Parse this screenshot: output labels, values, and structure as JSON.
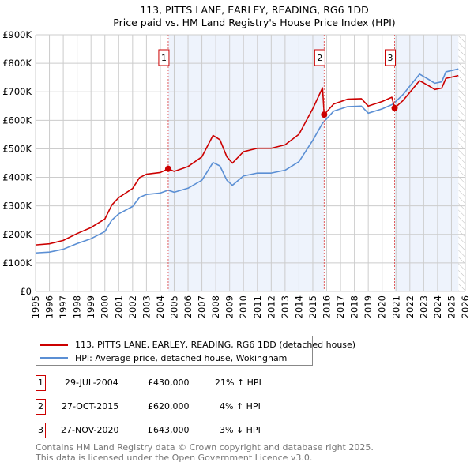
{
  "chart_data": {
    "type": "line",
    "title": "113, PITTS LANE, EARLEY, READING, RG6 1DD",
    "subtitle": "Price paid vs. HM Land Registry's House Price Index (HPI)",
    "xlim": [
      1995,
      2026
    ],
    "ylim": [
      0,
      900000
    ],
    "x_ticks": [
      "1995",
      "1996",
      "1997",
      "1998",
      "1999",
      "2000",
      "2001",
      "2002",
      "2003",
      "2004",
      "2005",
      "2006",
      "2007",
      "2008",
      "2009",
      "2010",
      "2011",
      "2012",
      "2013",
      "2014",
      "2015",
      "2016",
      "2017",
      "2018",
      "2019",
      "2020",
      "2021",
      "2022",
      "2023",
      "2024",
      "2025",
      "2026"
    ],
    "y_ticks": [
      {
        "v": 0,
        "label": "£0"
      },
      {
        "v": 100000,
        "label": "£100K"
      },
      {
        "v": 200000,
        "label": "£200K"
      },
      {
        "v": 300000,
        "label": "£300K"
      },
      {
        "v": 400000,
        "label": "£400K"
      },
      {
        "v": 500000,
        "label": "£500K"
      },
      {
        "v": 600000,
        "label": "£600K"
      },
      {
        "v": 700000,
        "label": "£700K"
      },
      {
        "v": 800000,
        "label": "£800K"
      },
      {
        "v": 900000,
        "label": "£900K"
      }
    ],
    "grid": true,
    "x": [
      1995.0,
      1996.0,
      1997.0,
      1998.0,
      1999.0,
      2000.0,
      2000.5,
      2001.0,
      2002.0,
      2002.5,
      2003.0,
      2004.0,
      2004.57,
      2005.0,
      2006.0,
      2007.0,
      2007.8,
      2008.3,
      2008.8,
      2009.2,
      2010.0,
      2011.0,
      2012.0,
      2013.0,
      2014.0,
      2015.0,
      2015.7,
      2015.82,
      2016.5,
      2017.5,
      2018.5,
      2019.0,
      2020.0,
      2020.7,
      2020.9,
      2021.5,
      2022.0,
      2022.7,
      2023.3,
      2023.8,
      2024.3,
      2024.6,
      2025.5
    ],
    "series": [
      {
        "name": "113, PITTS LANE, EARLEY, READING, RG6 1DD (detached house)",
        "color": "#cc0000",
        "values": [
          163,
          167,
          179,
          203,
          224,
          254,
          303,
          329,
          361,
          399,
          411,
          417,
          430,
          421,
          438,
          472,
          547,
          532,
          472,
          450,
          490,
          502,
          502,
          514,
          551,
          641,
          714,
          620,
          657,
          674,
          676,
          650,
          666,
          681,
          643,
          669,
          698,
          739,
          723,
          708,
          713,
          747,
          757
        ]
      },
      {
        "name": "HPI: Average price, detached house, Wokingham",
        "color": "#5b8fd4",
        "values": [
          135,
          138,
          148,
          168,
          185,
          210,
          250,
          272,
          298,
          330,
          340,
          345,
          355,
          348,
          362,
          390,
          452,
          440,
          390,
          372,
          405,
          415,
          415,
          425,
          455,
          530,
          590,
          596,
          632,
          648,
          650,
          625,
          640,
          655,
          662,
          690,
          720,
          762,
          745,
          730,
          735,
          770,
          780
        ]
      }
    ],
    "value_unit": "thousand GBP",
    "sales": [
      {
        "label": "1",
        "x": 2004.57,
        "value": 430
      },
      {
        "label": "2",
        "x": 2015.82,
        "value": 620
      },
      {
        "label": "3",
        "x": 2020.9,
        "value": 643
      }
    ],
    "shaded_ranges": [
      [
        2004.57,
        2015.82
      ],
      [
        2020.9,
        2025.5
      ]
    ],
    "hatched_from": 2025.5,
    "legend": "below"
  },
  "table": [
    {
      "num": "1",
      "date": "29-JUL-2004",
      "price": "£430,000",
      "hpi": "21% ↑ HPI"
    },
    {
      "num": "2",
      "date": "27-OCT-2015",
      "price": "£620,000",
      "hpi": "4% ↑ HPI"
    },
    {
      "num": "3",
      "date": "27-NOV-2020",
      "price": "£643,000",
      "hpi": "3% ↓ HPI"
    }
  ],
  "footer": {
    "line1": "Contains HM Land Registry data © Crown copyright and database right 2025.",
    "line2": "This data is licensed under the Open Government Licence v3.0."
  }
}
